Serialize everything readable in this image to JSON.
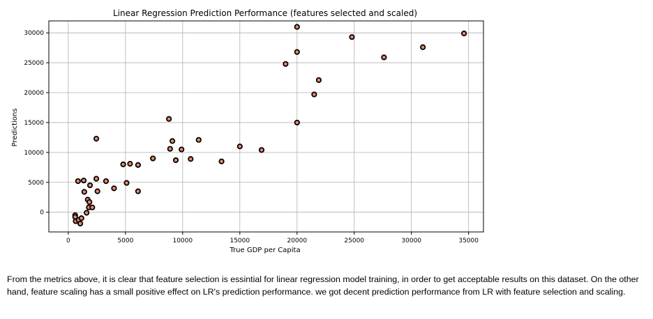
{
  "chart_data": {
    "type": "scatter",
    "title": "Linear Regression Prediction Performance (features selected and scaled)",
    "xlabel": "True GDP per Capita",
    "ylabel": "Predictions",
    "xlim": [
      -1700,
      36300
    ],
    "ylim": [
      -3300,
      32000
    ],
    "xticks": [
      0,
      5000,
      10000,
      15000,
      20000,
      25000,
      30000,
      35000
    ],
    "yticks": [
      0,
      5000,
      10000,
      15000,
      20000,
      25000,
      30000
    ],
    "grid": true,
    "marker": {
      "face": "#e8896a",
      "edge": "#000000"
    },
    "points": [
      {
        "x": 600,
        "y": -500
      },
      {
        "x": 600,
        "y": -800
      },
      {
        "x": 650,
        "y": -1500
      },
      {
        "x": 900,
        "y": -1300
      },
      {
        "x": 1050,
        "y": -1900
      },
      {
        "x": 1150,
        "y": -1000
      },
      {
        "x": 850,
        "y": 5200
      },
      {
        "x": 1350,
        "y": 5300
      },
      {
        "x": 1400,
        "y": 3400
      },
      {
        "x": 1600,
        "y": -100
      },
      {
        "x": 1700,
        "y": 2100
      },
      {
        "x": 1850,
        "y": 1700
      },
      {
        "x": 1800,
        "y": 800
      },
      {
        "x": 2100,
        "y": 800
      },
      {
        "x": 1900,
        "y": 4500
      },
      {
        "x": 2450,
        "y": 5600
      },
      {
        "x": 2550,
        "y": 3500
      },
      {
        "x": 2450,
        "y": 12300
      },
      {
        "x": 3300,
        "y": 5200
      },
      {
        "x": 4000,
        "y": 4000
      },
      {
        "x": 4800,
        "y": 8000
      },
      {
        "x": 5100,
        "y": 4900
      },
      {
        "x": 5400,
        "y": 8100
      },
      {
        "x": 6100,
        "y": 3500
      },
      {
        "x": 6100,
        "y": 7900
      },
      {
        "x": 7400,
        "y": 9000
      },
      {
        "x": 8800,
        "y": 15600
      },
      {
        "x": 8900,
        "y": 10600
      },
      {
        "x": 9100,
        "y": 11900
      },
      {
        "x": 9400,
        "y": 8700
      },
      {
        "x": 9900,
        "y": 10500
      },
      {
        "x": 10700,
        "y": 8900
      },
      {
        "x": 11400,
        "y": 12100
      },
      {
        "x": 13400,
        "y": 8500
      },
      {
        "x": 15000,
        "y": 11000
      },
      {
        "x": 16900,
        "y": 10400
      },
      {
        "x": 19000,
        "y": 24800
      },
      {
        "x": 20000,
        "y": 31000
      },
      {
        "x": 20000,
        "y": 26800
      },
      {
        "x": 20000,
        "y": 15000
      },
      {
        "x": 21500,
        "y": 19700
      },
      {
        "x": 21900,
        "y": 22100
      },
      {
        "x": 24800,
        "y": 29300
      },
      {
        "x": 27600,
        "y": 25900
      },
      {
        "x": 31000,
        "y": 27600
      },
      {
        "x": 34600,
        "y": 29900
      }
    ]
  },
  "caption": "From the metrics above, it is clear that feature selection is essintial for linear regression model training, in order to get acceptable results on this dataset. On the other hand, feature scaling has a small positive effect on LR's prediction performance. we got decent prediction performance from LR with feature selection and scaling."
}
